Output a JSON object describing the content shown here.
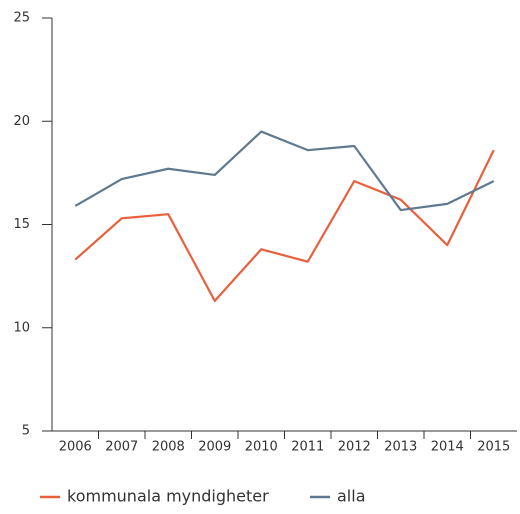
{
  "chart_data": {
    "type": "line",
    "categories": [
      "2006",
      "2007",
      "2008",
      "2009",
      "2010",
      "2011",
      "2012",
      "2013",
      "2014",
      "2015"
    ],
    "series": [
      {
        "name": "kommunala myndigheter",
        "color": "#e8603c",
        "values": [
          13.3,
          15.3,
          15.5,
          11.3,
          13.8,
          13.2,
          17.1,
          16.2,
          14.0,
          18.6
        ]
      },
      {
        "name": "alla",
        "color": "#5f7a8f",
        "values": [
          15.9,
          17.2,
          17.7,
          17.4,
          19.5,
          18.6,
          18.8,
          15.7,
          16.0,
          17.1
        ]
      }
    ],
    "ylim": [
      5,
      25
    ],
    "yticks": [
      5,
      10,
      15,
      20,
      25
    ],
    "legend": "bottom"
  }
}
